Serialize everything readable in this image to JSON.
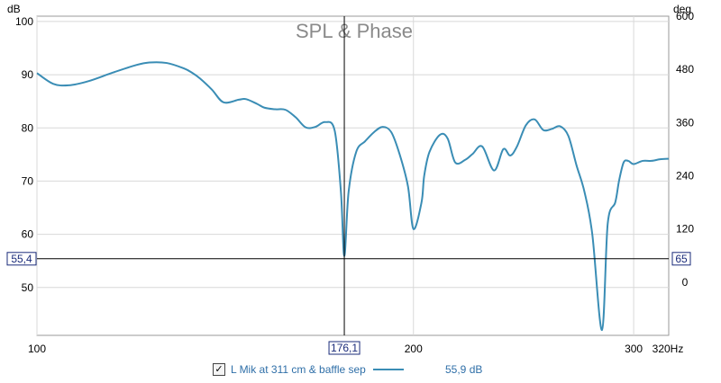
{
  "colors": {
    "trace": "#3a8db5",
    "cursor": "#000000",
    "grid": "#d8d8d8",
    "label_box": "#1a2b7a"
  },
  "legend": {
    "checked": true,
    "check_glyph": "✓",
    "name": "L Mik at 311 cm & baffle sep",
    "value": "55,9 dB"
  },
  "cursor": {
    "x_label": "176,1",
    "y_left_label": "55,4",
    "y_right_label": "65"
  },
  "chart_data": {
    "type": "line",
    "title": "SPL & Phase",
    "x_scale": "log",
    "xlim": [
      100,
      320
    ],
    "ylim": [
      41,
      101
    ],
    "y2lim": [
      -120,
      600
    ],
    "ylabel": "dB",
    "y2label": "deg",
    "xunit": "Hz",
    "x_ticks": [
      100,
      200,
      300
    ],
    "x_tick_labels": [
      "100",
      "200",
      "300"
    ],
    "x_end_label": "320Hz",
    "y_ticks": [
      100,
      90,
      80,
      70,
      60,
      50
    ],
    "y_tick_labels": [
      "100",
      "90",
      "80",
      "70",
      "60",
      "50"
    ],
    "y2_ticks": [
      600,
      480,
      360,
      240,
      120,
      0
    ],
    "y2_tick_labels": [
      "600",
      "480",
      "360",
      "240",
      "120",
      "0"
    ],
    "grid": true,
    "cursor_x": 176.1,
    "cursor_y": 55.4,
    "series": [
      {
        "name": "L Mik at 311 cm & baffle sep",
        "x": [
          100,
          103,
          106,
          110,
          115,
          120,
          123,
          127,
          131,
          133,
          135,
          138,
          141,
          145,
          147,
          150,
          152,
          155,
          158,
          161,
          164,
          167,
          170,
          173,
          175,
          176.1,
          177.5,
          180,
          183,
          186,
          189,
          192,
          195,
          198,
          200,
          203,
          204,
          206,
          210,
          213,
          216,
          220,
          223,
          227,
          232,
          236,
          239,
          242,
          246,
          250,
          254,
          258,
          262,
          266,
          270,
          274,
          278,
          283,
          286,
          290,
          292,
          294.5,
          297,
          300,
          305,
          310,
          315,
          320
        ],
        "y": [
          90.3,
          88.3,
          88,
          88.8,
          90.4,
          91.8,
          92.3,
          92.2,
          91.2,
          90.4,
          89.3,
          87.2,
          84.8,
          85.3,
          85.4,
          84.5,
          83.8,
          83.5,
          83.4,
          82,
          80.1,
          80.2,
          81.1,
          79.5,
          68,
          55.9,
          68,
          75.5,
          77.5,
          79.2,
          80.2,
          79.2,
          75,
          69,
          61,
          66,
          71,
          75.5,
          78.7,
          78,
          73.5,
          74,
          75.1,
          76.5,
          72,
          76,
          74.8,
          76.5,
          80.5,
          81.6,
          79.6,
          79.8,
          80.3,
          78.5,
          73,
          68,
          60,
          42,
          62,
          66,
          70,
          73.5,
          73.8,
          73.2,
          73.8,
          73.8,
          74.1,
          74.2
        ]
      }
    ]
  }
}
